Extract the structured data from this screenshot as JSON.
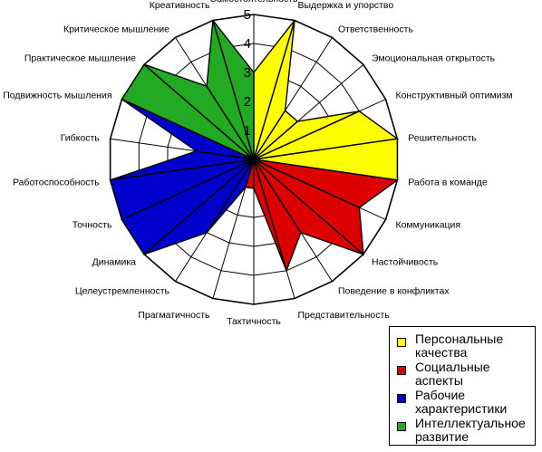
{
  "chart_data": {
    "type": "radar",
    "title": "",
    "radial_range": [
      0,
      5
    ],
    "ticks": [
      "0",
      "1",
      "2",
      "3",
      "4",
      "5"
    ],
    "categories": [
      "Самостоятельность",
      "Выдержка и упорство",
      "Ответственность",
      "Эмоциональная открытость",
      "Конструктивный оптимизм",
      "Решительность",
      "Работа в команде",
      "Коммуникация",
      "Настойчивость",
      "Поведение в конфликтах",
      "Представительность",
      "Тактичность",
      "Прагматичность",
      "Целеустремленность",
      "Динамика",
      "Точность",
      "Работоспособность",
      "Гибкость",
      "Подвижность мышления",
      "Практическое мышление",
      "Критическое мышление",
      "Креативность"
    ],
    "values": [
      3,
      5,
      2,
      2,
      4,
      5,
      5,
      4,
      5,
      3,
      4,
      1,
      1,
      3,
      5,
      5,
      5,
      2,
      5,
      5,
      3,
      5
    ],
    "series": [
      {
        "name": "Персональные качества",
        "color": "#ffff00",
        "indices": [
          0,
          1,
          2,
          3,
          4,
          5
        ]
      },
      {
        "name": "Социальные аспекты",
        "color": "#dd0000",
        "indices": [
          6,
          7,
          8,
          9,
          10,
          11
        ]
      },
      {
        "name": "Рабочие характеристики",
        "color": "#0000cc",
        "indices": [
          12,
          13,
          14,
          15,
          16,
          17
        ]
      },
      {
        "name": "Интеллектуальное развитие",
        "color": "#22aa22",
        "indices": [
          18,
          19,
          20,
          21
        ]
      }
    ],
    "legend_position": "bottom-right"
  }
}
